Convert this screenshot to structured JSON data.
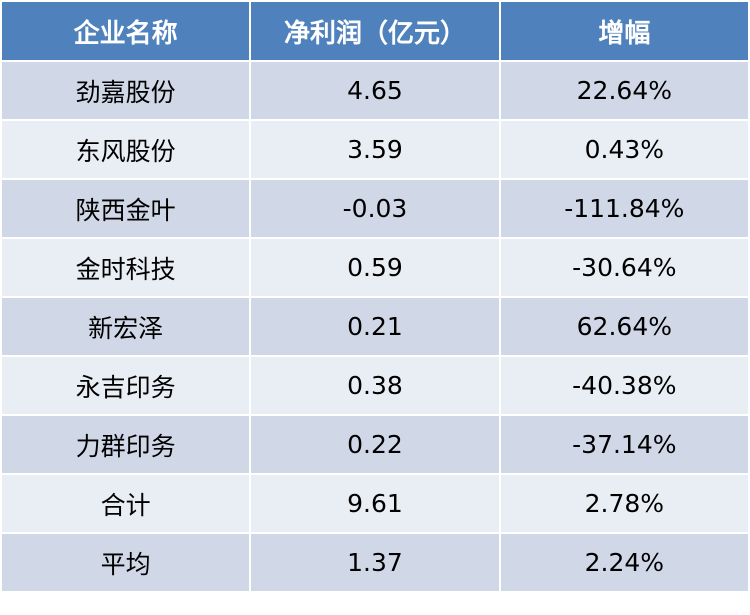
{
  "table": {
    "header": [
      "企业名称",
      "净利润（亿元）",
      "增幅"
    ],
    "rows": [
      [
        "劲嘉股份",
        "4.65",
        "22.64%"
      ],
      [
        "东风股份",
        "3.59",
        "0.43%"
      ],
      [
        "陕西金叶",
        "-0.03",
        "-111.84%"
      ],
      [
        "金时科技",
        "0.59",
        "-30.64%"
      ],
      [
        "新宏泽",
        "0.21",
        "62.64%"
      ],
      [
        "永吉印务",
        "0.38",
        "-40.38%"
      ],
      [
        "力群印务",
        "0.22",
        "-37.14%"
      ],
      [
        "合计",
        "9.61",
        "2.78%"
      ],
      [
        "平均",
        "1.37",
        "2.24%"
      ]
    ]
  }
}
